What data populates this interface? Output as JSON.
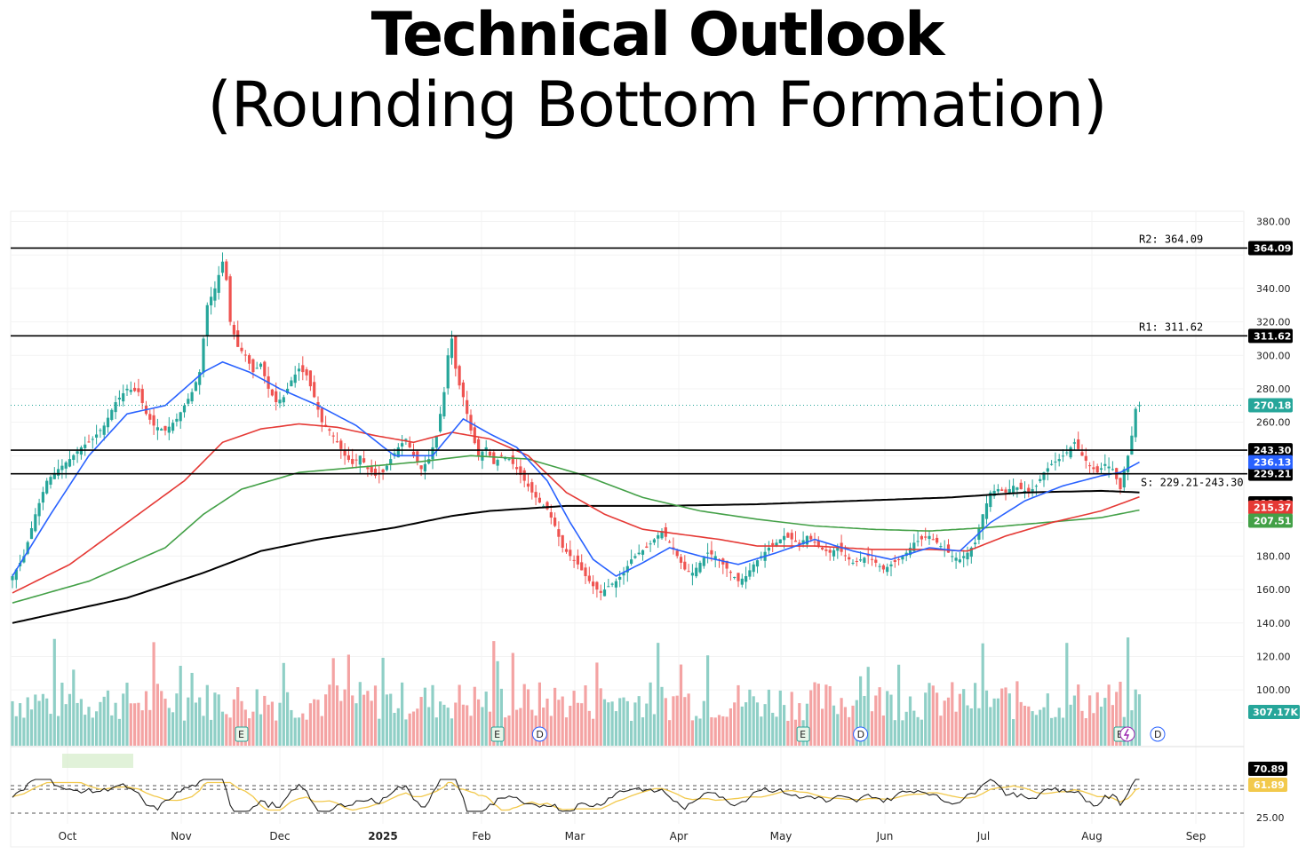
{
  "header": {
    "title": "Technical Outlook",
    "subtitle": "(Rounding Bottom Formation)"
  },
  "colors": {
    "bull": "#26a69a",
    "bear": "#ef5350",
    "vol_bull": "#8fcfc6",
    "vol_bear": "#f4a3a3",
    "ema20": "#2962ff",
    "ema50": "#e53935",
    "ema100": "#43a047",
    "ema200": "#000000",
    "rsi": "#222222",
    "rsi_ma": "#f2c94c",
    "last_price": "#26a69a"
  },
  "chart_data": {
    "type": "candlestick",
    "x_months": [
      "Oct",
      "Nov",
      "Dec",
      "2025",
      "Feb",
      "Mar",
      "Apr",
      "May",
      "Jun",
      "Jul",
      "Aug",
      "Sep"
    ],
    "y_ticks": [
      "380.00",
      "340.00",
      "320.00",
      "300.00",
      "280.00",
      "260.00",
      "180.00",
      "160.00",
      "140.00",
      "120.00",
      "100.00"
    ],
    "ylim": [
      80,
      380
    ],
    "grid": true,
    "levels": [
      {
        "name": "R2",
        "label": "R2: 364.09",
        "tag": "364.09",
        "value": 364.09
      },
      {
        "name": "R1",
        "label": "R1: 311.62",
        "tag": "311.62",
        "value": 311.62
      },
      {
        "name": "S upper",
        "label": "",
        "tag": "243.30",
        "value": 243.3
      },
      {
        "name": "S lower",
        "label": "S: 229.21-243.30",
        "tag": "229.21",
        "value": 229.21
      }
    ],
    "price_tags": [
      {
        "label": "270.18",
        "value": 270.18,
        "color": "#26a69a"
      },
      {
        "label": "236.13",
        "value": 236.13,
        "color": "#2962ff"
      },
      {
        "label": "218.06",
        "value": 218.06,
        "color": "#000000"
      },
      {
        "label": "215.37",
        "value": 215.37,
        "color": "#e53935"
      },
      {
        "label": "207.51",
        "value": 207.51,
        "color": "#43a047"
      }
    ],
    "price_waypoints": [
      [
        0,
        168
      ],
      [
        3,
        180
      ],
      [
        6,
        205
      ],
      [
        9,
        225
      ],
      [
        12,
        232
      ],
      [
        15,
        238
      ],
      [
        18,
        245
      ],
      [
        21,
        250
      ],
      [
        24,
        258
      ],
      [
        27,
        272
      ],
      [
        30,
        280
      ],
      [
        33,
        278
      ],
      [
        35,
        265
      ],
      [
        37,
        258
      ],
      [
        40,
        255
      ],
      [
        43,
        262
      ],
      [
        45,
        270
      ],
      [
        47,
        278
      ],
      [
        49,
        290
      ],
      [
        51,
        330
      ],
      [
        53,
        340
      ],
      [
        55,
        356
      ],
      [
        56,
        345
      ],
      [
        57,
        320
      ],
      [
        59,
        305
      ],
      [
        61,
        300
      ],
      [
        63,
        290
      ],
      [
        65,
        295
      ],
      [
        67,
        280
      ],
      [
        69,
        272
      ],
      [
        71,
        275
      ],
      [
        73,
        285
      ],
      [
        75,
        292
      ],
      [
        77,
        288
      ],
      [
        79,
        275
      ],
      [
        81,
        260
      ],
      [
        83,
        255
      ],
      [
        85,
        248
      ],
      [
        87,
        240
      ],
      [
        89,
        235
      ],
      [
        91,
        240
      ],
      [
        93,
        232
      ],
      [
        95,
        228
      ],
      [
        97,
        230
      ],
      [
        99,
        238
      ],
      [
        101,
        245
      ],
      [
        103,
        250
      ],
      [
        105,
        240
      ],
      [
        107,
        232
      ],
      [
        109,
        238
      ],
      [
        111,
        252
      ],
      [
        113,
        278
      ],
      [
        114,
        300
      ],
      [
        115,
        310
      ],
      [
        116,
        292
      ],
      [
        117,
        282
      ],
      [
        118,
        275
      ],
      [
        120,
        255
      ],
      [
        122,
        240
      ],
      [
        124,
        245
      ],
      [
        126,
        235
      ],
      [
        128,
        240
      ],
      [
        130,
        238
      ],
      [
        132,
        232
      ],
      [
        134,
        225
      ],
      [
        136,
        218
      ],
      [
        138,
        212
      ],
      [
        140,
        208
      ],
      [
        142,
        198
      ],
      [
        144,
        185
      ],
      [
        146,
        180
      ],
      [
        148,
        175
      ],
      [
        150,
        168
      ],
      [
        152,
        162
      ],
      [
        154,
        158
      ],
      [
        156,
        162
      ],
      [
        158,
        165
      ],
      [
        160,
        170
      ],
      [
        162,
        178
      ],
      [
        164,
        182
      ],
      [
        166,
        185
      ],
      [
        168,
        190
      ],
      [
        170,
        195
      ],
      [
        172,
        188
      ],
      [
        174,
        180
      ],
      [
        176,
        172
      ],
      [
        178,
        170
      ],
      [
        180,
        176
      ],
      [
        182,
        182
      ],
      [
        184,
        180
      ],
      [
        186,
        175
      ],
      [
        188,
        170
      ],
      [
        190,
        165
      ],
      [
        192,
        168
      ],
      [
        194,
        175
      ],
      [
        196,
        180
      ],
      [
        198,
        185
      ],
      [
        200,
        188
      ],
      [
        202,
        192
      ],
      [
        204,
        190
      ],
      [
        206,
        187
      ],
      [
        208,
        192
      ],
      [
        210,
        188
      ],
      [
        212,
        184
      ],
      [
        214,
        182
      ],
      [
        216,
        185
      ],
      [
        218,
        180
      ],
      [
        220,
        176
      ],
      [
        222,
        178
      ],
      [
        224,
        180
      ],
      [
        226,
        176
      ],
      [
        228,
        172
      ],
      [
        230,
        175
      ],
      [
        232,
        178
      ],
      [
        234,
        182
      ],
      [
        236,
        188
      ],
      [
        238,
        190
      ],
      [
        240,
        192
      ],
      [
        242,
        188
      ],
      [
        244,
        184
      ],
      [
        246,
        180
      ],
      [
        248,
        178
      ],
      [
        250,
        182
      ],
      [
        252,
        188
      ],
      [
        254,
        205
      ],
      [
        256,
        218
      ],
      [
        258,
        220
      ],
      [
        260,
        218
      ],
      [
        262,
        222
      ],
      [
        264,
        220
      ],
      [
        266,
        218
      ],
      [
        268,
        222
      ],
      [
        270,
        230
      ],
      [
        272,
        235
      ],
      [
        274,
        238
      ],
      [
        276,
        242
      ],
      [
        278,
        248
      ],
      [
        280,
        240
      ],
      [
        282,
        234
      ],
      [
        284,
        230
      ],
      [
        286,
        235
      ],
      [
        288,
        232
      ],
      [
        290,
        220
      ],
      [
        291,
        232
      ],
      [
        292,
        240
      ],
      [
        293,
        252
      ],
      [
        294,
        268
      ],
      [
        295,
        270.18
      ]
    ],
    "ema20": [
      [
        0,
        168
      ],
      [
        10,
        205
      ],
      [
        20,
        240
      ],
      [
        30,
        265
      ],
      [
        40,
        270
      ],
      [
        50,
        290
      ],
      [
        55,
        296
      ],
      [
        62,
        290
      ],
      [
        70,
        280
      ],
      [
        80,
        270
      ],
      [
        90,
        258
      ],
      [
        100,
        240
      ],
      [
        110,
        240
      ],
      [
        118,
        262
      ],
      [
        125,
        253
      ],
      [
        132,
        245
      ],
      [
        140,
        225
      ],
      [
        146,
        200
      ],
      [
        152,
        178
      ],
      [
        158,
        168
      ],
      [
        165,
        176
      ],
      [
        172,
        185
      ],
      [
        180,
        180
      ],
      [
        190,
        175
      ],
      [
        200,
        182
      ],
      [
        210,
        190
      ],
      [
        220,
        183
      ],
      [
        230,
        178
      ],
      [
        240,
        185
      ],
      [
        248,
        183
      ],
      [
        256,
        200
      ],
      [
        265,
        213
      ],
      [
        275,
        222
      ],
      [
        285,
        228
      ],
      [
        290,
        230
      ],
      [
        295,
        236.13
      ]
    ],
    "ema50": [
      [
        0,
        158
      ],
      [
        15,
        175
      ],
      [
        30,
        200
      ],
      [
        45,
        225
      ],
      [
        55,
        248
      ],
      [
        65,
        256
      ],
      [
        75,
        259
      ],
      [
        85,
        257
      ],
      [
        95,
        252
      ],
      [
        105,
        248
      ],
      [
        115,
        254
      ],
      [
        125,
        250
      ],
      [
        135,
        240
      ],
      [
        145,
        218
      ],
      [
        155,
        205
      ],
      [
        165,
        196
      ],
      [
        175,
        193
      ],
      [
        185,
        190
      ],
      [
        195,
        186
      ],
      [
        210,
        186
      ],
      [
        225,
        184
      ],
      [
        240,
        184
      ],
      [
        250,
        183
      ],
      [
        260,
        192
      ],
      [
        272,
        200
      ],
      [
        285,
        207
      ],
      [
        295,
        215.37
      ]
    ],
    "ema100": [
      [
        0,
        152
      ],
      [
        20,
        165
      ],
      [
        40,
        185
      ],
      [
        50,
        205
      ],
      [
        60,
        220
      ],
      [
        75,
        230
      ],
      [
        90,
        233
      ],
      [
        105,
        236
      ],
      [
        120,
        240
      ],
      [
        135,
        238
      ],
      [
        150,
        228
      ],
      [
        165,
        215
      ],
      [
        180,
        207
      ],
      [
        195,
        202
      ],
      [
        210,
        198
      ],
      [
        225,
        196
      ],
      [
        240,
        195
      ],
      [
        255,
        197
      ],
      [
        270,
        200
      ],
      [
        285,
        203
      ],
      [
        295,
        207.51
      ]
    ],
    "ema200": [
      [
        0,
        140
      ],
      [
        30,
        155
      ],
      [
        50,
        170
      ],
      [
        65,
        183
      ],
      [
        80,
        190
      ],
      [
        100,
        197
      ],
      [
        115,
        204
      ],
      [
        125,
        207
      ],
      [
        145,
        210
      ],
      [
        170,
        210
      ],
      [
        195,
        211
      ],
      [
        220,
        213
      ],
      [
        245,
        215
      ],
      [
        265,
        218
      ],
      [
        285,
        219
      ],
      [
        295,
        218.06
      ]
    ],
    "volume": {
      "last_label": "307.17K",
      "event_markers": [
        {
          "label": "E",
          "bar": 60
        },
        {
          "label": "E",
          "bar": 127
        },
        {
          "label": "D",
          "bar": 138
        },
        {
          "label": "E",
          "bar": 207
        },
        {
          "label": "D",
          "bar": 222
        },
        {
          "label": "E",
          "bar": 290
        }
      ]
    },
    "rsi": {
      "tags": [
        {
          "label": "70.89",
          "value": 70.89
        },
        {
          "label": "61.89",
          "value": 61.89
        }
      ],
      "bottom_label": "25.00",
      "levels": [
        70,
        30
      ]
    }
  }
}
